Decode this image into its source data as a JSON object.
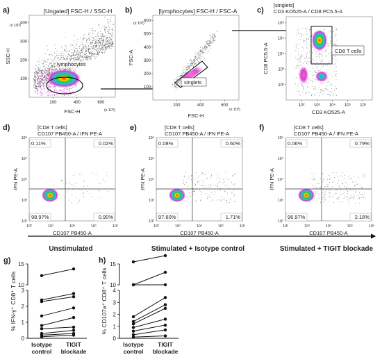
{
  "panels": {
    "a": {
      "letter": "a)",
      "title": "[Ungated] FSC-H / SSC-H",
      "ylabel": "SSC-H",
      "xlabel": "FSC-H",
      "xunit": "(x 10³)",
      "yunit": "(x 10³)",
      "xticks": [
        "200",
        "400",
        "600"
      ],
      "yticks": [
        "100",
        "200",
        "300",
        "400"
      ],
      "gate": "lymphocytes"
    },
    "b": {
      "letter": "b)",
      "title": "[lymphocytes] FSC-H / FSC-A",
      "ylabel": "FSC-A",
      "xlabel": "FSC-H",
      "xunit": "(x 10³)",
      "yunit": "(x 10³)",
      "xticks": [
        "200",
        "400",
        "600"
      ],
      "yticks": [
        "100",
        "200",
        "300",
        "400",
        "500",
        "600"
      ],
      "gate": "singlets"
    },
    "c": {
      "letter": "c)",
      "title_line1": "[singlets]",
      "title_line2": "CD3 KO525-A / CD8 PC5.5-A",
      "ylabel": "CD8 PC5.5-A",
      "xlabel": "CD3 KO525-A",
      "xticks": [
        "10²",
        "10³",
        "10⁴",
        "10⁵",
        "10⁶"
      ],
      "yticks": [
        "10²",
        "10³",
        "10⁴",
        "10⁵",
        "10⁶"
      ],
      "gate": "CD8 T cells"
    },
    "d": {
      "letter": "d)",
      "title_line1": "[CD8 T cells]",
      "title_line2": "CD107 PB450-A / IFN PE-A",
      "ylabel": "IFN PE-A",
      "xlabel": "CD107 PB450-A",
      "q_ul": "0.11%",
      "q_ur": "0.02%",
      "q_ll": "98.97%",
      "q_lr": "0.90%"
    },
    "e": {
      "letter": "e)",
      "title_line1": "[CD8 T cells]",
      "title_line2": "CD107 PB450-A / IFN PE-A",
      "ylabel": "IFN PE-A",
      "xlabel": "CD107 PB450-A",
      "q_ul": "0.08%",
      "q_ur": "0.60%",
      "q_ll": "97.60%",
      "q_lr": "1.71%"
    },
    "f": {
      "letter": "f)",
      "title_line1": "[CD8 T cells]",
      "title_line2": "CD107 PB450-A / IFN PE-A",
      "ylabel": "IFN PE-A",
      "xlabel": "CD107 PB450-A",
      "q_ul": "0.06%",
      "q_ur": "0.79%",
      "q_ll": "96.97%",
      "q_lr": "2.18%"
    },
    "log_ticks": [
      "10²",
      "10³",
      "10⁴",
      "10⁵",
      "10⁶"
    ],
    "cond": {
      "unstim": "Unstimulated",
      "iso": "Stimulated + Isotype control",
      "tigit": "Stimulated + TIGIT blockade"
    }
  },
  "chart_data": [
    {
      "type": "line",
      "panel": "g)",
      "ylabel": "% IFN-γ⁺ CD8⁺ T cells",
      "categories": [
        "Isotype control",
        "TIGIT blockade"
      ],
      "yticks": [
        "0",
        "1",
        "2",
        "3",
        "10",
        "15"
      ],
      "series": [
        {
          "values": [
            12.2,
            13.8
          ]
        },
        {
          "values": [
            2.4,
            2.8
          ]
        },
        {
          "values": [
            2.3,
            2.6
          ]
        },
        {
          "values": [
            1.4,
            1.9
          ]
        },
        {
          "values": [
            0.8,
            1.3
          ]
        },
        {
          "values": [
            0.6,
            0.7
          ]
        },
        {
          "values": [
            0.3,
            0.5
          ]
        },
        {
          "values": [
            0.2,
            0.3
          ]
        },
        {
          "values": [
            0.1,
            0.2
          ]
        }
      ]
    },
    {
      "type": "line",
      "panel": "h)",
      "ylabel": "% CD107a⁺ CD8⁺ T cells",
      "categories": [
        "Isotype control",
        "TIGIT blockade"
      ],
      "yticks": [
        "0",
        "1",
        "2",
        "3",
        "4",
        "10",
        "15"
      ],
      "series": [
        {
          "values": [
            15.5,
            17.0
          ]
        },
        {
          "values": [
            10.0,
            13.0
          ]
        },
        {
          "values": [
            4.1,
            4.3
          ]
        },
        {
          "values": [
            1.8,
            3.4
          ]
        },
        {
          "values": [
            1.4,
            2.8
          ]
        },
        {
          "values": [
            1.2,
            2.5
          ]
        },
        {
          "values": [
            0.9,
            1.6
          ]
        },
        {
          "values": [
            0.6,
            1.1
          ]
        },
        {
          "values": [
            0.3,
            0.7
          ]
        },
        {
          "values": [
            0.1,
            0.2
          ]
        }
      ]
    }
  ]
}
